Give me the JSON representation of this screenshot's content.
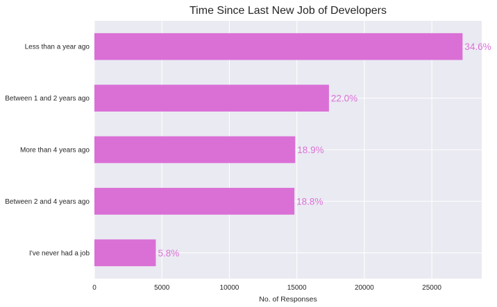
{
  "chart_data": {
    "type": "bar",
    "orientation": "horizontal",
    "title": "Time Since Last New Job of Developers",
    "xlabel": "No. of Responses",
    "ylabel": "",
    "categories": [
      "Less than a year ago",
      "Between 1 and 2 years ago",
      "More than 4 years ago",
      "Between 2 and 4 years ago",
      "I've never had a job"
    ],
    "values": [
      27280,
      17380,
      14880,
      14820,
      4550
    ],
    "data_labels": [
      "34.6%",
      "22.0%",
      "18.9%",
      "18.8%",
      "5.8%"
    ],
    "xlim": [
      0,
      28700
    ],
    "xticks": [
      0,
      5000,
      10000,
      15000,
      20000,
      25000
    ],
    "xtick_labels": [
      "0",
      "5000",
      "10000",
      "15000",
      "20000",
      "25000"
    ],
    "grid": true,
    "legend": "none",
    "colors": {
      "bar": "#da70d6",
      "label": "#da70d6",
      "plot_background": "#eaeaf2",
      "grid": "#ffffff",
      "text": "#262626"
    }
  }
}
